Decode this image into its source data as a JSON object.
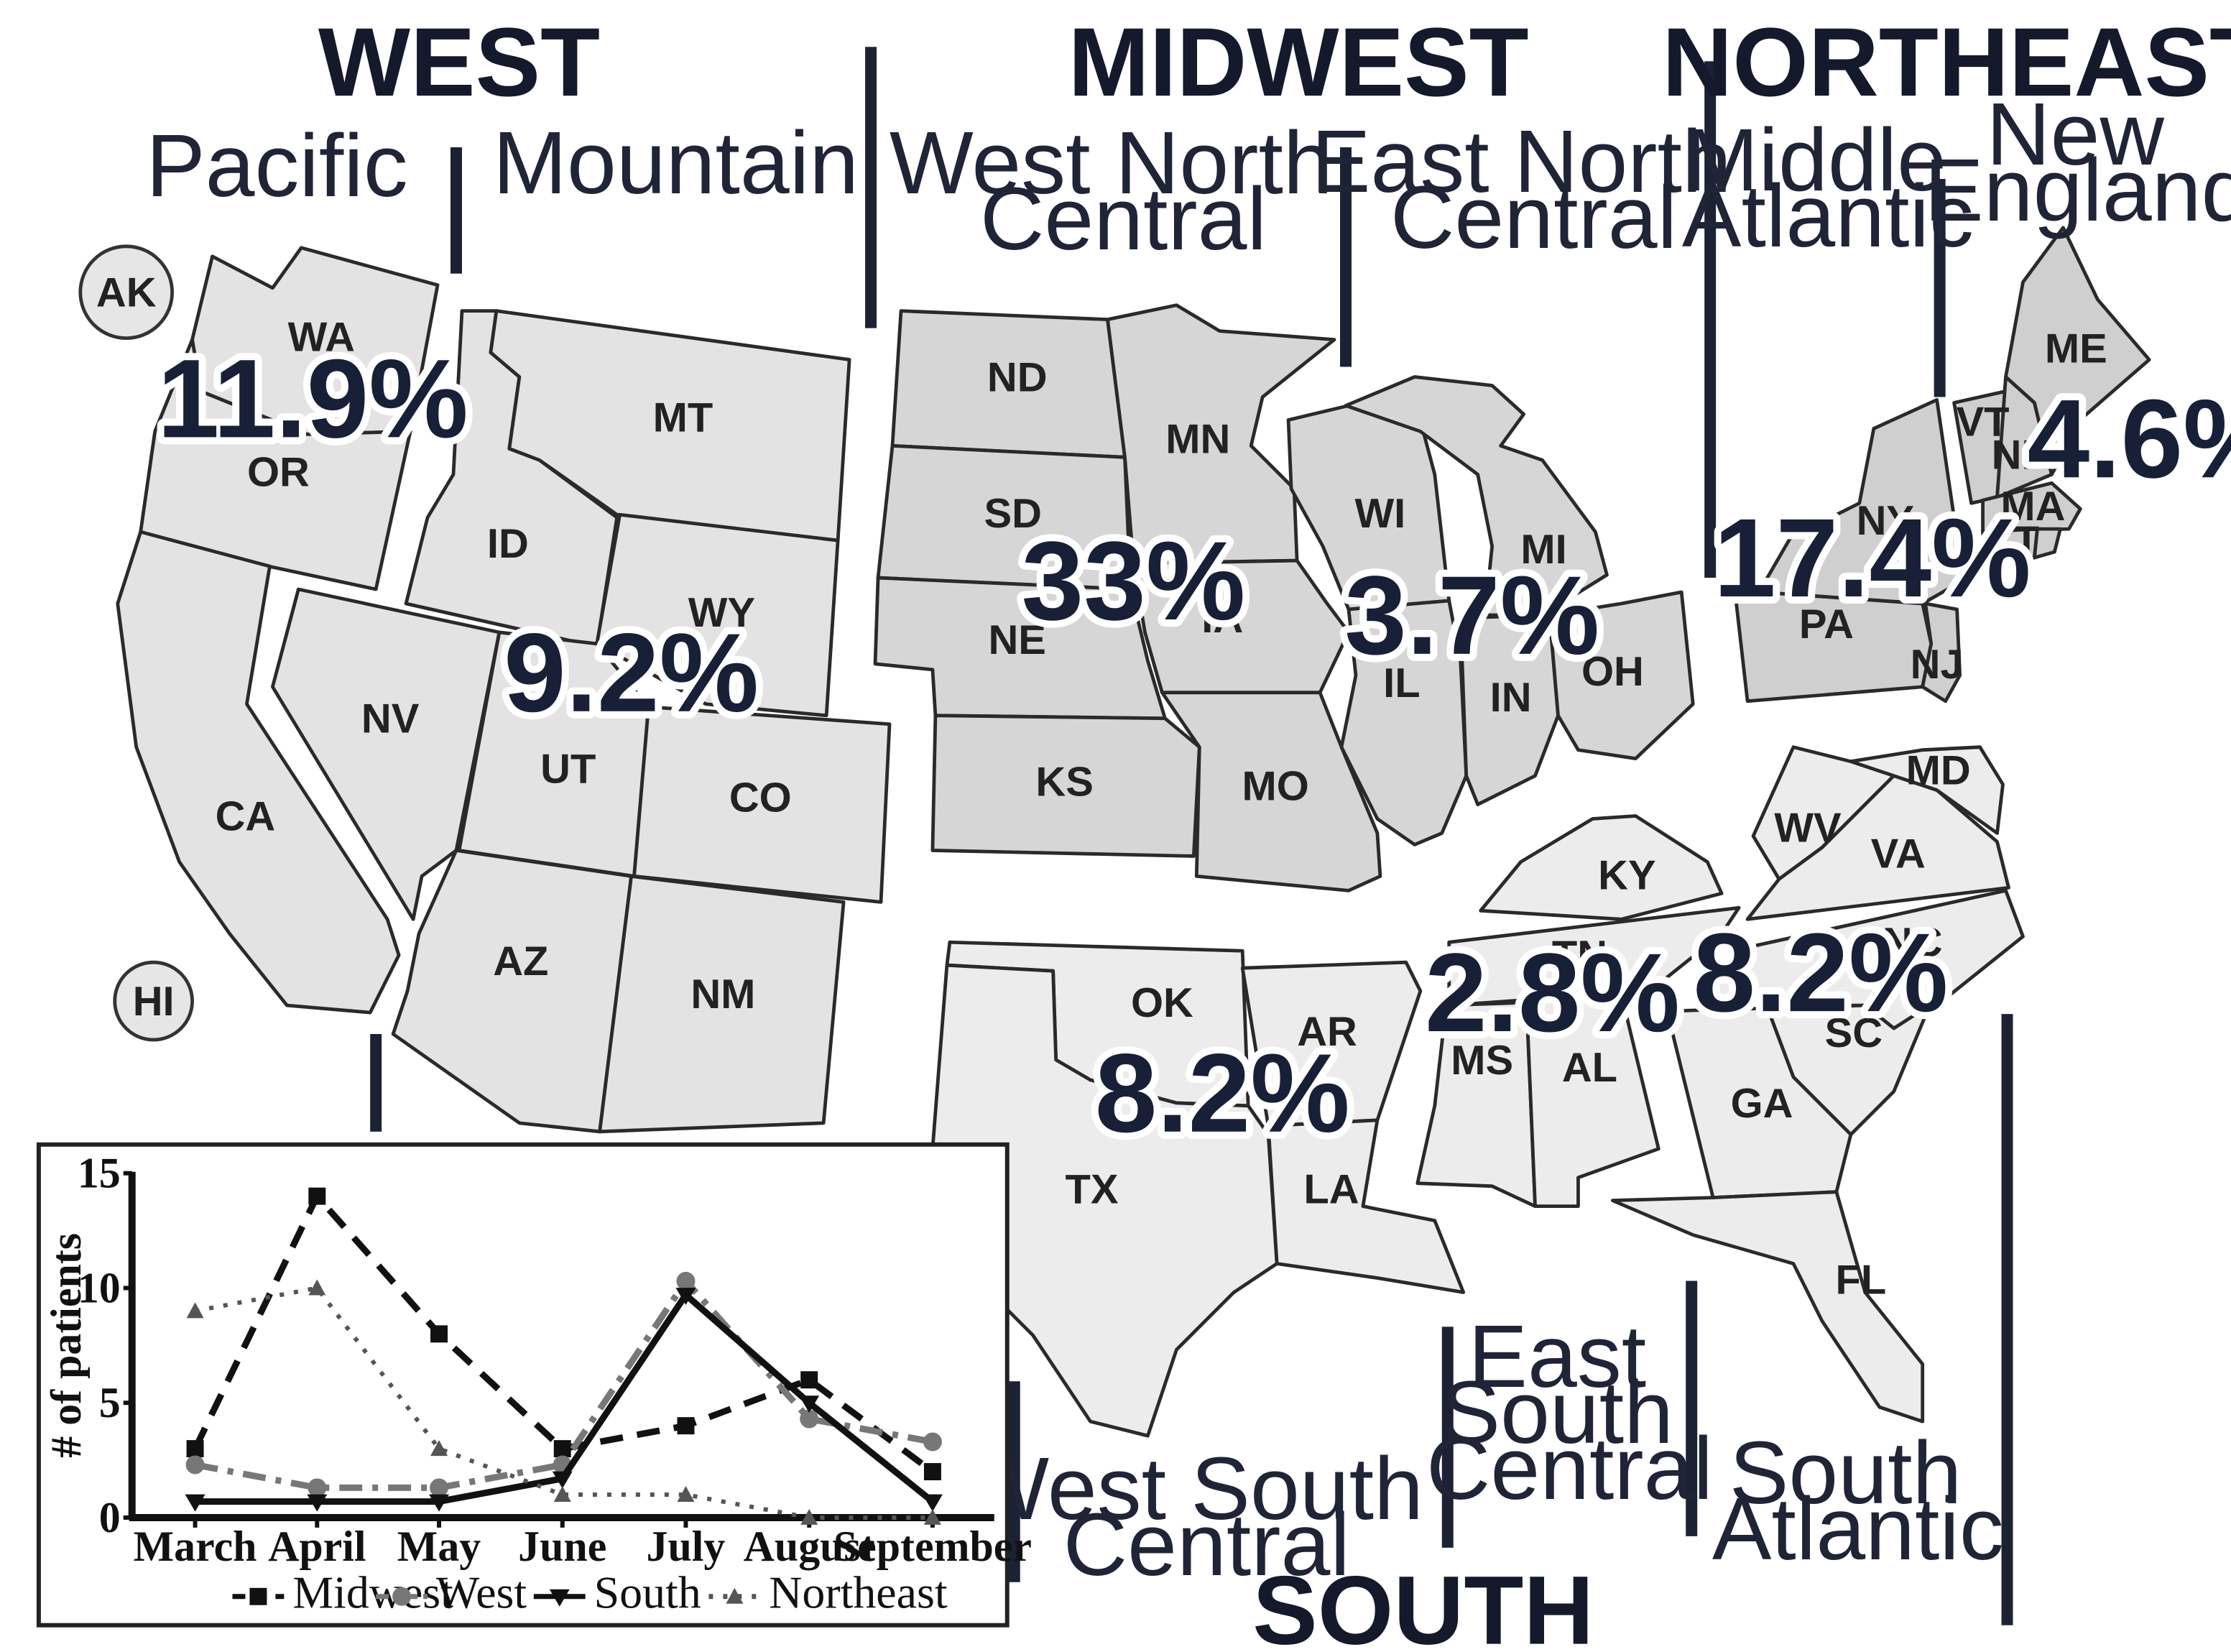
{
  "regions": {
    "west": "WEST",
    "midwest": "MIDWEST",
    "northeast": "NORTHEAST",
    "south": "SOUTH"
  },
  "divisions": {
    "pacific": [
      "Pacific"
    ],
    "mountain": [
      "Mountain"
    ],
    "west_north_central": [
      "West North",
      "Central"
    ],
    "east_north_central": [
      "East North",
      "Central"
    ],
    "middle_atlantic": [
      "Middle",
      "Atlantic"
    ],
    "new_england": [
      "New",
      "England"
    ],
    "west_south_central": [
      "West South",
      "Central"
    ],
    "east_south_central": [
      "East",
      "South",
      "Central"
    ],
    "south_atlantic": [
      "South",
      "Atlantic"
    ]
  },
  "percentages": {
    "pacific": "11.9%",
    "mountain": "9.2%",
    "west_north_central": "33%",
    "east_north_central": "3.7%",
    "middle_atlantic": "17.4%",
    "new_england": "4.6%",
    "west_south_central": "8.2%",
    "east_south_central": "2.8%",
    "south_atlantic": "8.2%"
  },
  "fills": {
    "west": "#e3e3e3",
    "midwest": "#d6d6d6",
    "northeast": "#cfcfcf",
    "south": "#ececec"
  },
  "states": {
    "AK": "AK",
    "HI": "HI",
    "WA": "WA",
    "OR": "OR",
    "CA": "CA",
    "ID": "ID",
    "MT": "MT",
    "WY": "WY",
    "NV": "NV",
    "UT": "UT",
    "CO": "CO",
    "AZ": "AZ",
    "NM": "NM",
    "ND": "ND",
    "SD": "SD",
    "NE": "NE",
    "KS": "KS",
    "MN": "MN",
    "IA": "IA",
    "MO": "MO",
    "WI": "WI",
    "MI": "MI",
    "IL": "IL",
    "IN": "IN",
    "OH": "OH",
    "NY": "NY",
    "PA": "PA",
    "NJ": "NJ",
    "ME": "ME",
    "VT": "VT",
    "NH": "NH",
    "MA": "MA",
    "CT": "CT",
    "OK": "OK",
    "TX": "TX",
    "AR": "AR",
    "LA": "LA",
    "KY": "KY",
    "TN": "TN",
    "MS": "MS",
    "AL": "AL",
    "WV": "WV",
    "VA": "VA",
    "MD": "MD",
    "NC": "NC",
    "SC": "SC",
    "GA": "GA",
    "FL": "FL"
  },
  "chart_data": {
    "type": "line",
    "categories": [
      "March",
      "April",
      "May",
      "June",
      "July",
      "August",
      "September"
    ],
    "ylabel": "# of patients",
    "xlabel": "",
    "ylim": [
      0,
      15
    ],
    "yticks": [
      "0",
      "5",
      "10",
      "15"
    ],
    "grid": false,
    "legend_position": "bottom",
    "series": [
      {
        "name": "Midwest",
        "values": [
          3,
          14,
          8,
          3,
          4,
          6,
          2
        ],
        "marker": "square",
        "dash": "dashed",
        "color": "#111111"
      },
      {
        "name": "West",
        "values": [
          2.3,
          1.3,
          1.3,
          2.3,
          10.3,
          4.3,
          3.3
        ],
        "marker": "circle",
        "dash": "dashdot",
        "color": "#777777"
      },
      {
        "name": "South",
        "values": [
          0.7,
          0.7,
          0.7,
          1.7,
          9.7,
          5,
          0.7
        ],
        "marker": "triangle-down",
        "dash": "solid",
        "color": "#111111"
      },
      {
        "name": "Northeast",
        "values": [
          9,
          10,
          3,
          1,
          1,
          0,
          0
        ],
        "marker": "triangle-up",
        "dash": "dotted",
        "color": "#555555"
      }
    ]
  }
}
